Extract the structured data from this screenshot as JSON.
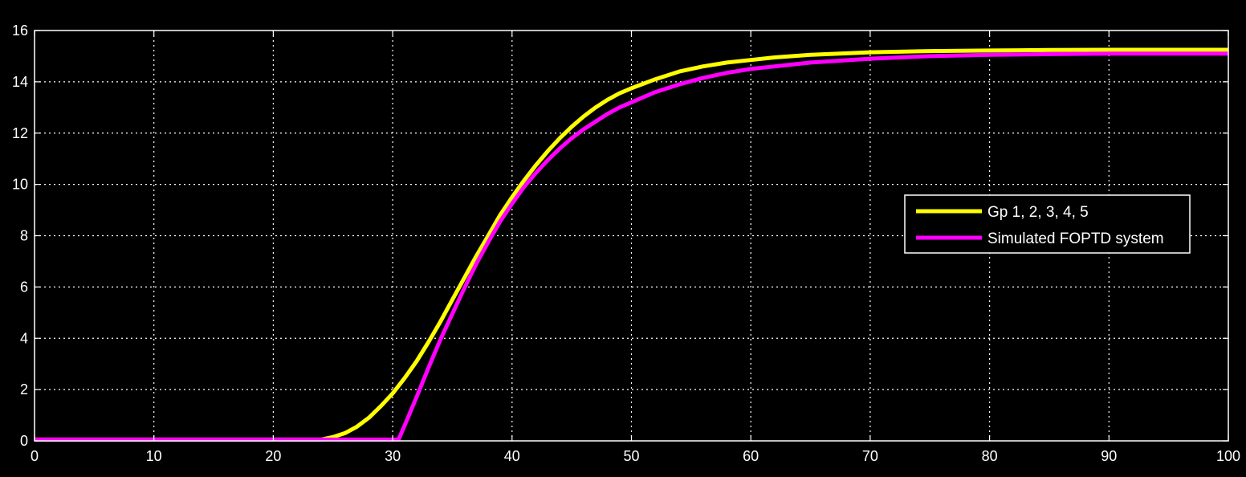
{
  "chart_data": {
    "type": "line",
    "title": "",
    "xlabel": "",
    "ylabel": "",
    "xlim": [
      0,
      100
    ],
    "ylim": [
      0,
      16
    ],
    "x_ticks": [
      0,
      10,
      20,
      30,
      40,
      50,
      60,
      70,
      80,
      90,
      100
    ],
    "y_ticks": [
      0,
      2,
      4,
      6,
      8,
      10,
      12,
      14,
      16
    ],
    "grid": true,
    "background": "#000000",
    "axes_color": "#ffffff",
    "legend_position": "center-right",
    "series": [
      {
        "name": "Gp 1, 2, 3, 4, 5",
        "color": "#ffff00",
        "x": [
          0,
          24,
          25,
          26,
          27,
          28,
          29,
          30,
          31,
          32,
          33,
          34,
          35,
          36,
          37,
          38,
          39,
          40,
          41,
          42,
          43,
          44,
          45,
          46,
          47,
          48,
          49,
          50,
          52,
          54,
          56,
          58,
          60,
          62,
          65,
          70,
          75,
          80,
          85,
          90,
          95,
          100
        ],
        "y": [
          0.05,
          0.05,
          0.15,
          0.3,
          0.55,
          0.9,
          1.35,
          1.85,
          2.45,
          3.1,
          3.85,
          4.65,
          5.5,
          6.35,
          7.2,
          8.0,
          8.8,
          9.5,
          10.15,
          10.75,
          11.3,
          11.8,
          12.25,
          12.65,
          13.0,
          13.3,
          13.55,
          13.75,
          14.1,
          14.4,
          14.6,
          14.75,
          14.85,
          14.95,
          15.05,
          15.15,
          15.2,
          15.22,
          15.24,
          15.25,
          15.25,
          15.25
        ]
      },
      {
        "name": "Simulated FOPTD system",
        "color": "#ff00ff",
        "x": [
          0,
          30.5,
          31,
          32,
          33,
          34,
          35,
          36,
          37,
          38,
          39,
          40,
          41,
          42,
          43,
          44,
          45,
          46,
          47,
          48,
          49,
          50,
          52,
          54,
          56,
          58,
          60,
          62,
          65,
          70,
          75,
          80,
          85,
          90,
          95,
          100
        ],
        "y": [
          0.05,
          0.05,
          0.6,
          1.7,
          2.85,
          3.95,
          4.95,
          5.95,
          6.9,
          7.75,
          8.55,
          9.25,
          9.9,
          10.45,
          10.95,
          11.4,
          11.8,
          12.15,
          12.45,
          12.75,
          13.0,
          13.2,
          13.6,
          13.9,
          14.15,
          14.35,
          14.5,
          14.6,
          14.75,
          14.9,
          15.0,
          15.05,
          15.08,
          15.1,
          15.1,
          15.1
        ]
      }
    ]
  }
}
